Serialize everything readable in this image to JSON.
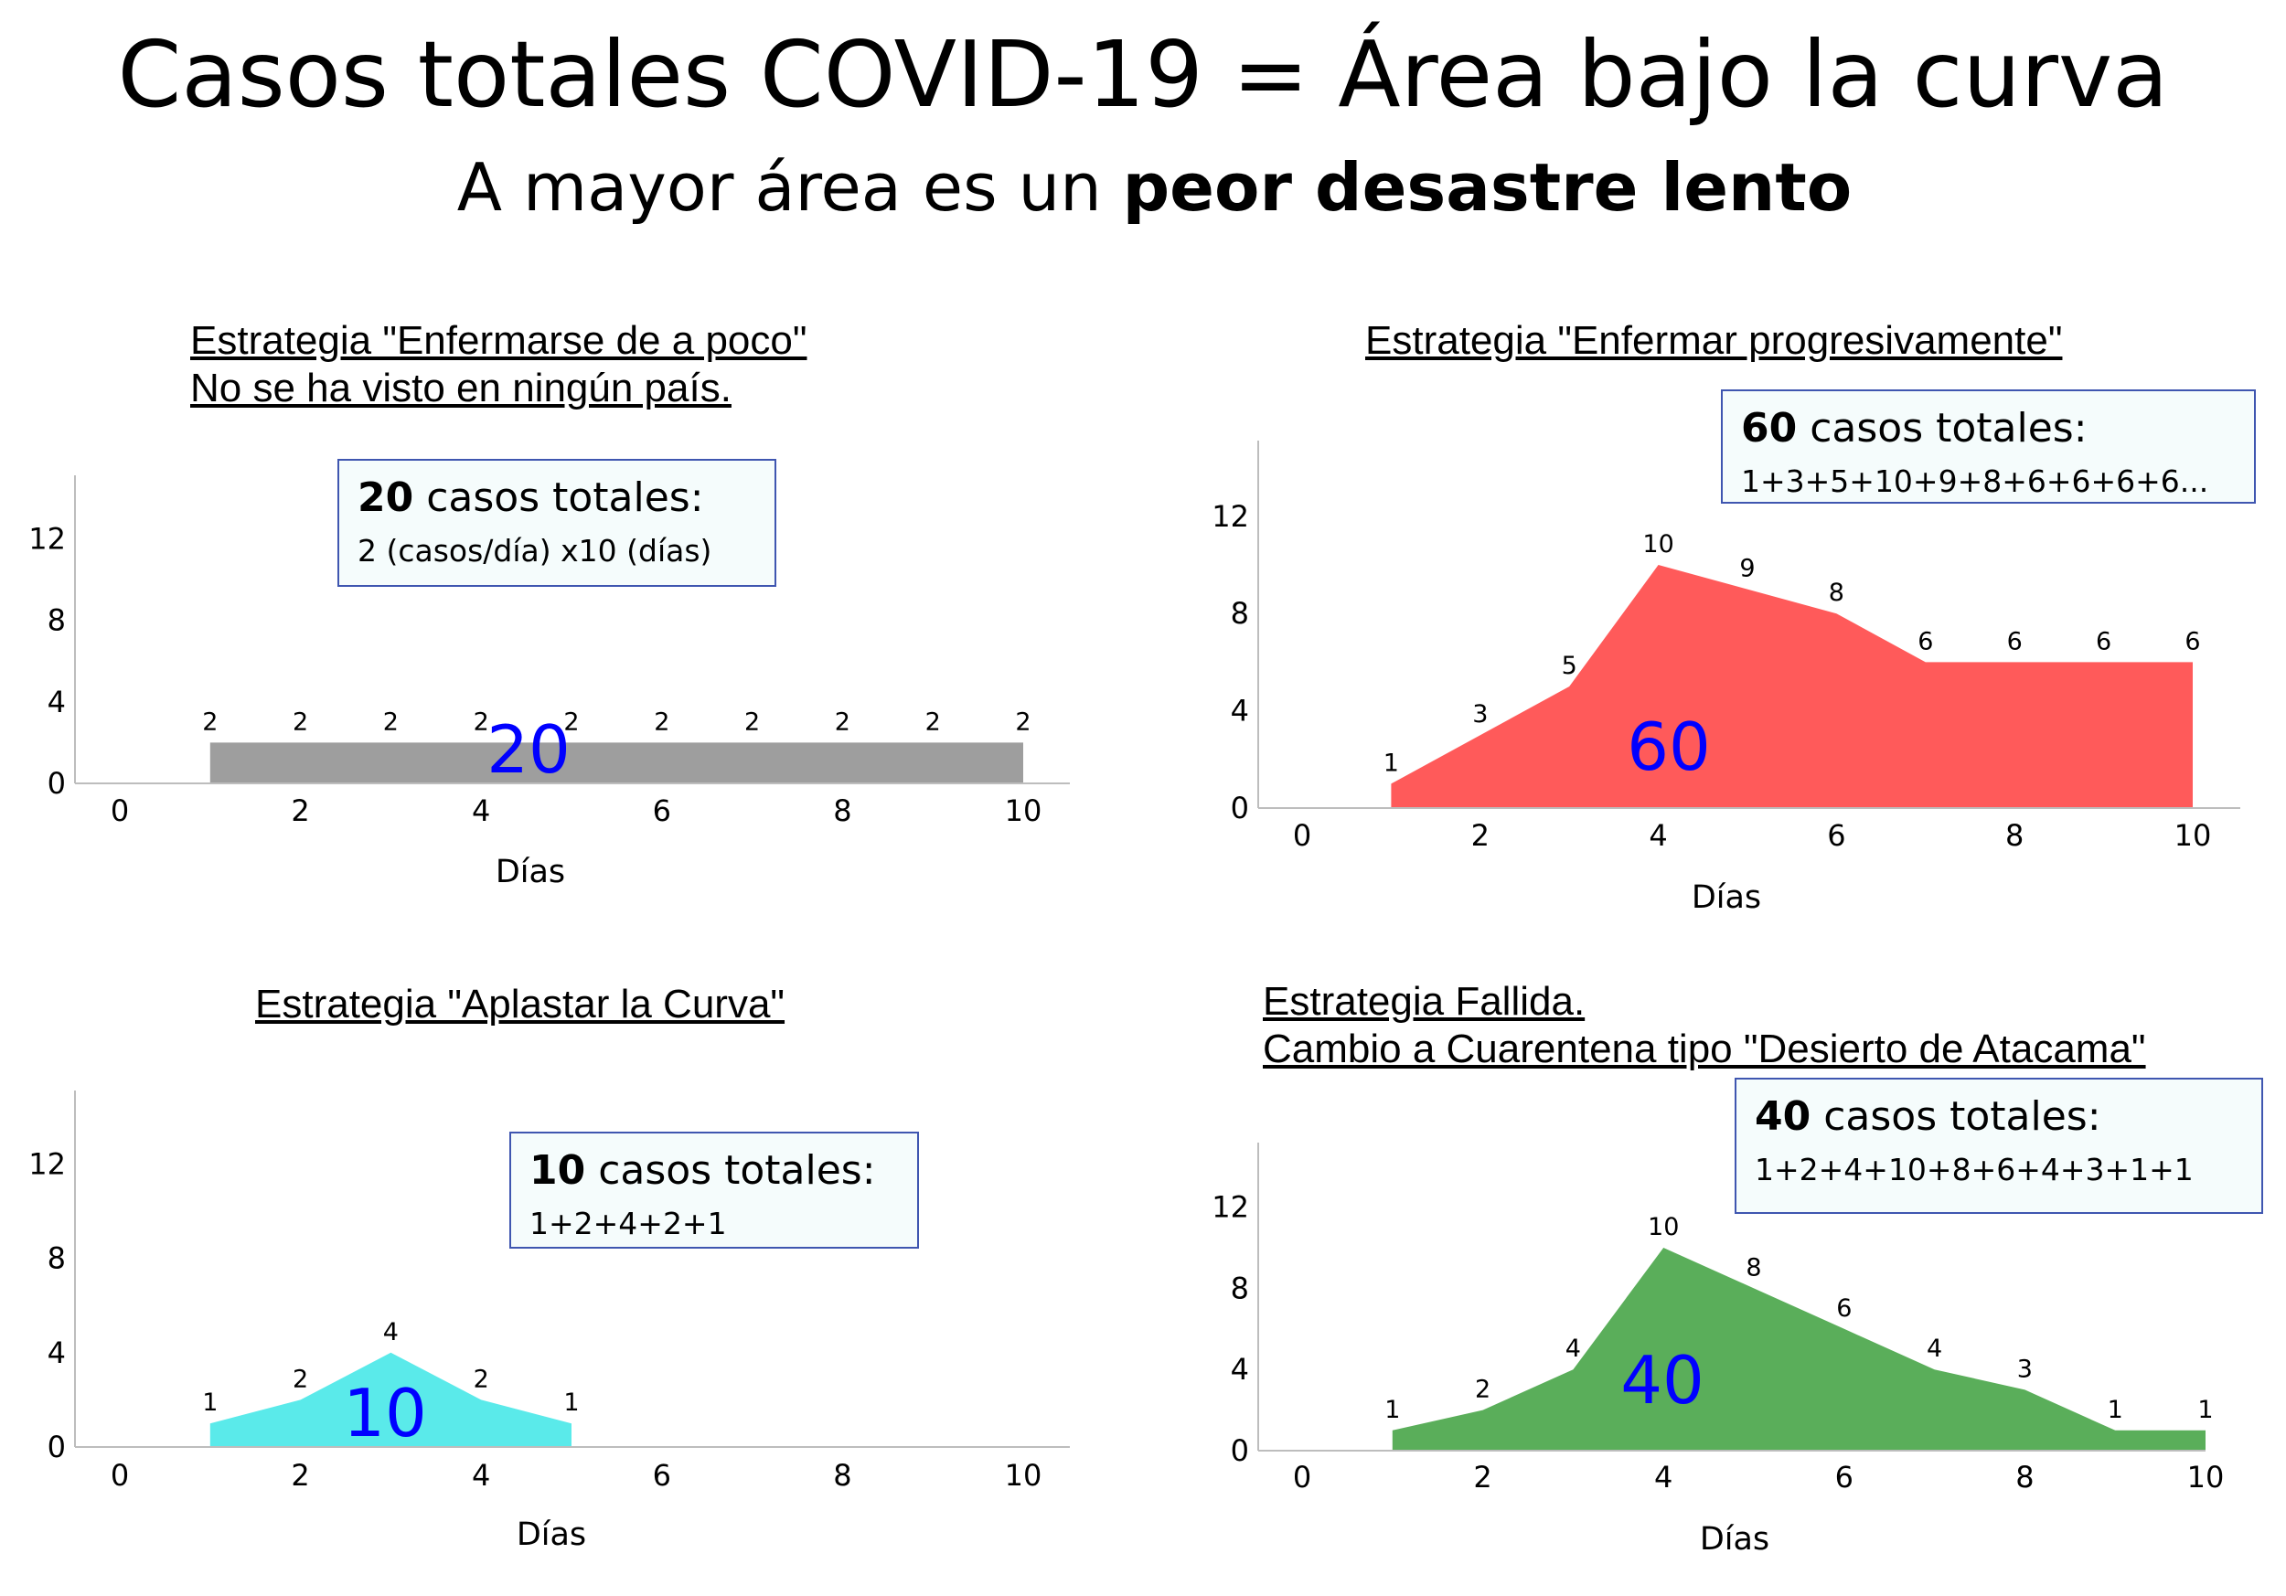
{
  "header": {
    "title": "Casos totales COVID-19 = Área bajo la curva",
    "subtitle_prefix": "A mayor área es un ",
    "subtitle_bold": "peor desastre lento"
  },
  "panels": [
    {
      "title_lines": [
        "Estrategia \"Enfermarse de a poco\"",
        "No se ha visto en ningún país."
      ],
      "box_bold": "20",
      "box_text": " casos totales:",
      "box_detail": "2 (casos/día) x10 (días)",
      "total_label": "20",
      "fill_color": "#9e9e9e",
      "total_color": "#0000ff"
    },
    {
      "title_lines": [
        "Estrategia \"Enfermar progresivamente\""
      ],
      "box_bold": "60",
      "box_text": " casos totales:",
      "box_detail": "1+3+5+10+9+8+6+6+6+6...",
      "total_label": "60",
      "fill_color": "#ff5a5a",
      "total_color": "#0000ff"
    },
    {
      "title_lines": [
        "Estrategia \"Aplastar la Curva\""
      ],
      "box_bold": "10",
      "box_text": " casos totales:",
      "box_detail": "1+2+4+2+1",
      "total_label": "10",
      "fill_color": "#5aeaea",
      "total_color": "#0000ff"
    },
    {
      "title_lines": [
        "Estrategia Fallida.",
        "Cambio a Cuarentena tipo \"Desierto de Atacama\""
      ],
      "box_bold": "40",
      "box_text": " casos totales:",
      "box_detail": "1+2+4+10+8+6+4+3+1+1",
      "total_label": "40",
      "fill_color": "#5aae5a",
      "total_color": "#0000ff"
    }
  ],
  "chart_data": [
    {
      "type": "area",
      "x": [
        1,
        2,
        3,
        4,
        5,
        6,
        7,
        8,
        9,
        10
      ],
      "values": [
        2,
        2,
        2,
        2,
        2,
        2,
        2,
        2,
        2,
        2
      ],
      "xlabel": "Días",
      "ylabel": "",
      "xlim": [
        -1,
        10.5
      ],
      "ylim": [
        0,
        15
      ],
      "xticks": [
        0,
        2,
        4,
        6,
        8,
        10
      ],
      "yticks": [
        0,
        4,
        8,
        12
      ],
      "grid": false
    },
    {
      "type": "area",
      "x": [
        1,
        2,
        3,
        4,
        5,
        6,
        7,
        8,
        9,
        10
      ],
      "values": [
        1,
        3,
        5,
        10,
        9,
        8,
        6,
        6,
        6,
        6
      ],
      "xlabel": "Días",
      "ylabel": "",
      "xlim": [
        -1,
        10.5
      ],
      "ylim": [
        0,
        15
      ],
      "xticks": [
        0,
        2,
        4,
        6,
        8,
        10
      ],
      "yticks": [
        0,
        4,
        8,
        12
      ],
      "grid": false
    },
    {
      "type": "area",
      "x": [
        1,
        2,
        3,
        4,
        5
      ],
      "values": [
        1,
        2,
        4,
        2,
        1
      ],
      "xlabel": "Días",
      "ylabel": "",
      "xlim": [
        -1,
        10.5
      ],
      "ylim": [
        0,
        15
      ],
      "xticks": [
        0,
        2,
        4,
        6,
        8,
        10
      ],
      "yticks": [
        0,
        4,
        8,
        12
      ],
      "grid": false
    },
    {
      "type": "area",
      "x": [
        1,
        2,
        3,
        4,
        5,
        6,
        7,
        8,
        9,
        10
      ],
      "values": [
        1,
        2,
        4,
        10,
        8,
        6,
        4,
        3,
        1,
        1
      ],
      "xlabel": "Días",
      "ylabel": "",
      "xlim": [
        -1,
        10.5
      ],
      "ylim": [
        0,
        15
      ],
      "xticks": [
        0,
        2,
        4,
        6,
        8,
        10
      ],
      "yticks": [
        0,
        4,
        8,
        12
      ],
      "grid": false
    }
  ]
}
